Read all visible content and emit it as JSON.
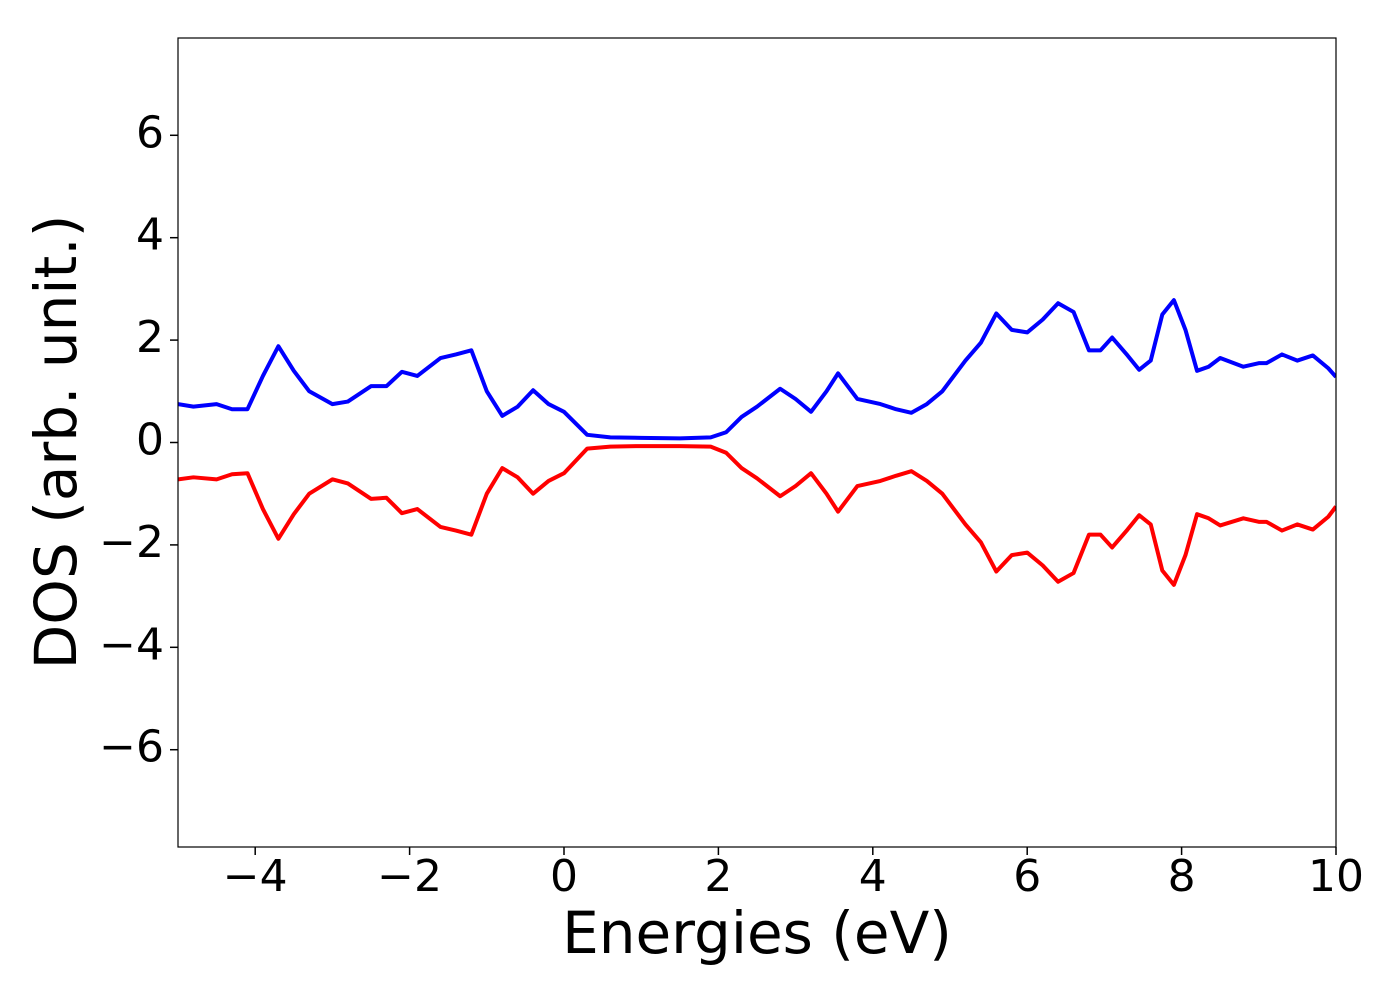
{
  "chart_data": {
    "type": "line",
    "xlabel": "Energies (eV)",
    "ylabel": "DOS (arb. unit.)",
    "xlim": [
      -5,
      10
    ],
    "ylim": [
      -7.9,
      7.9
    ],
    "xticks": [
      {
        "value": -4,
        "label": "−4"
      },
      {
        "value": -2,
        "label": "−2"
      },
      0,
      2,
      4,
      6,
      8,
      10
    ],
    "yticks": [
      {
        "value": -6,
        "label": "−6"
      },
      {
        "value": -4,
        "label": "−4"
      },
      {
        "value": -2,
        "label": "−2"
      },
      0,
      2,
      4,
      6
    ],
    "grid": false,
    "x": [
      -5,
      -4.8,
      -4.5,
      -4.3,
      -4.1,
      -3.9,
      -3.7,
      -3.5,
      -3.3,
      -3.0,
      -2.8,
      -2.5,
      -2.3,
      -2.1,
      -1.9,
      -1.6,
      -1.4,
      -1.2,
      -1.0,
      -0.8,
      -0.6,
      -0.4,
      -0.2,
      0,
      0.3,
      0.6,
      1.0,
      1.5,
      1.9,
      2.1,
      2.3,
      2.5,
      2.8,
      3.0,
      3.2,
      3.4,
      3.55,
      3.8,
      4.1,
      4.3,
      4.5,
      4.7,
      4.9,
      5.2,
      5.4,
      5.6,
      5.8,
      6.0,
      6.2,
      6.4,
      6.6,
      6.8,
      6.95,
      7.1,
      7.3,
      7.45,
      7.6,
      7.75,
      7.9,
      8.05,
      8.2,
      8.35,
      8.5,
      8.8,
      9.0,
      9.1,
      9.3,
      9.5,
      9.7,
      9.9,
      10
    ],
    "series": [
      {
        "color": "#0000ff",
        "values": [
          0.75,
          0.7,
          0.75,
          0.65,
          0.65,
          1.3,
          1.88,
          1.4,
          1.0,
          0.75,
          0.8,
          1.1,
          1.1,
          1.38,
          1.3,
          1.65,
          1.72,
          1.8,
          1.0,
          0.52,
          0.7,
          1.02,
          0.75,
          0.6,
          0.15,
          0.1,
          0.09,
          0.08,
          0.1,
          0.2,
          0.5,
          0.7,
          1.05,
          0.85,
          0.6,
          1.0,
          1.35,
          0.85,
          0.75,
          0.65,
          0.58,
          0.75,
          1.0,
          1.6,
          1.95,
          2.52,
          2.2,
          2.15,
          2.4,
          2.72,
          2.55,
          1.8,
          1.8,
          2.05,
          1.7,
          1.42,
          1.6,
          2.5,
          2.78,
          2.2,
          1.4,
          1.48,
          1.65,
          1.48,
          1.55,
          1.55,
          1.72,
          1.6,
          1.7,
          1.45,
          1.28
        ]
      },
      {
        "color": "#ff0000",
        "values": [
          -0.72,
          -0.68,
          -0.72,
          -0.62,
          -0.6,
          -1.3,
          -1.88,
          -1.4,
          -1.0,
          -0.72,
          -0.8,
          -1.1,
          -1.08,
          -1.38,
          -1.3,
          -1.65,
          -1.72,
          -1.8,
          -1.0,
          -0.5,
          -0.68,
          -1.0,
          -0.75,
          -0.6,
          -0.12,
          -0.08,
          -0.07,
          -0.07,
          -0.08,
          -0.2,
          -0.5,
          -0.7,
          -1.05,
          -0.85,
          -0.6,
          -1.0,
          -1.35,
          -0.85,
          -0.75,
          -0.65,
          -0.56,
          -0.75,
          -1.0,
          -1.6,
          -1.95,
          -2.52,
          -2.2,
          -2.15,
          -2.4,
          -2.72,
          -2.55,
          -1.8,
          -1.8,
          -2.05,
          -1.7,
          -1.42,
          -1.6,
          -2.5,
          -2.78,
          -2.2,
          -1.4,
          -1.48,
          -1.62,
          -1.48,
          -1.55,
          -1.55,
          -1.72,
          -1.6,
          -1.7,
          -1.45,
          -1.25
        ]
      }
    ]
  }
}
